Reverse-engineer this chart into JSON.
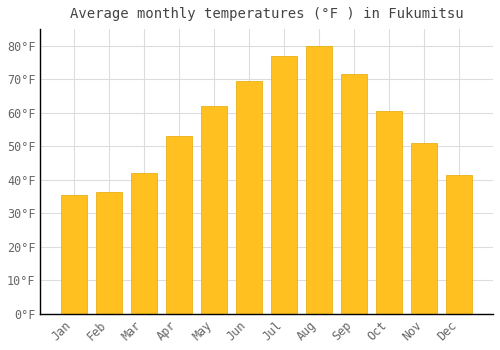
{
  "title": "Average monthly temperatures (°F ) in Fukumitsu",
  "months": [
    "Jan",
    "Feb",
    "Mar",
    "Apr",
    "May",
    "Jun",
    "Jul",
    "Aug",
    "Sep",
    "Oct",
    "Nov",
    "Dec"
  ],
  "values": [
    35.5,
    36.5,
    42,
    53,
    62,
    69.5,
    77,
    80,
    71.5,
    60.5,
    51,
    41.5
  ],
  "bar_color": "#FFC020",
  "bar_edge_color": "#E8A800",
  "background_color": "#FFFFFF",
  "plot_background": "#FFFFFF",
  "grid_color": "#DDDDDD",
  "yticks": [
    0,
    10,
    20,
    30,
    40,
    50,
    60,
    70,
    80
  ],
  "ylim": [
    0,
    85
  ],
  "title_fontsize": 10,
  "tick_fontsize": 8.5,
  "tick_color": "#666666",
  "title_color": "#444444",
  "font_family": "monospace",
  "bar_width": 0.75
}
